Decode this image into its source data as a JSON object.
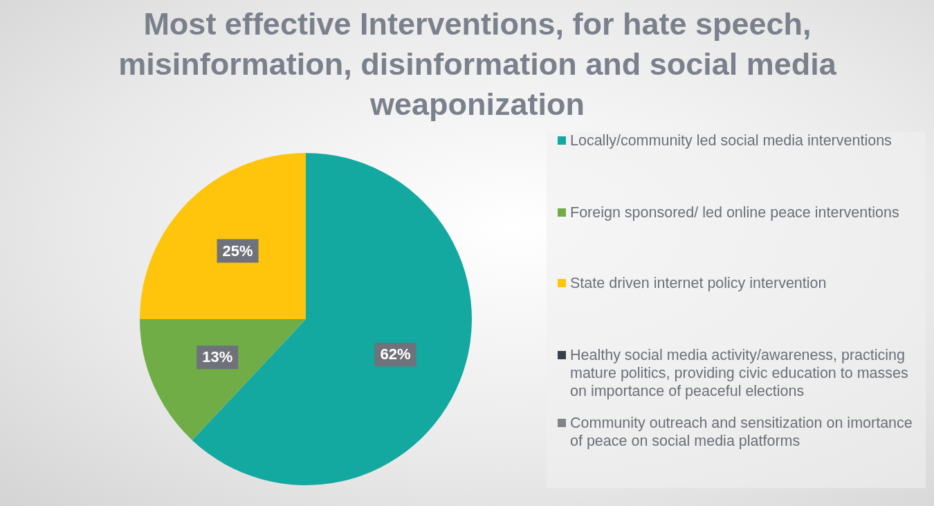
{
  "chart_data": {
    "type": "pie",
    "title": "Most effective Interventions, for hate speech, misinformation, disinformation and social media weaponization",
    "categories": [
      "Locally/community led social media interventions",
      "Foreign sponsored/ led online peace interventions",
      "State driven internet policy intervention",
      "Healthy social media activity/awareness, practicing mature politics, providing civic education to masses on importance of peaceful elections",
      "Community outreach and sensitization on imortance of peace on social media platforms"
    ],
    "values": [
      62,
      13,
      25,
      0,
      0
    ],
    "colors": [
      "#13a8a0",
      "#70ad47",
      "#fec50c",
      "#3b3f48",
      "#80838a"
    ],
    "value_labels": [
      "62%",
      "13%",
      "25%",
      null,
      null
    ],
    "legend": "right"
  }
}
